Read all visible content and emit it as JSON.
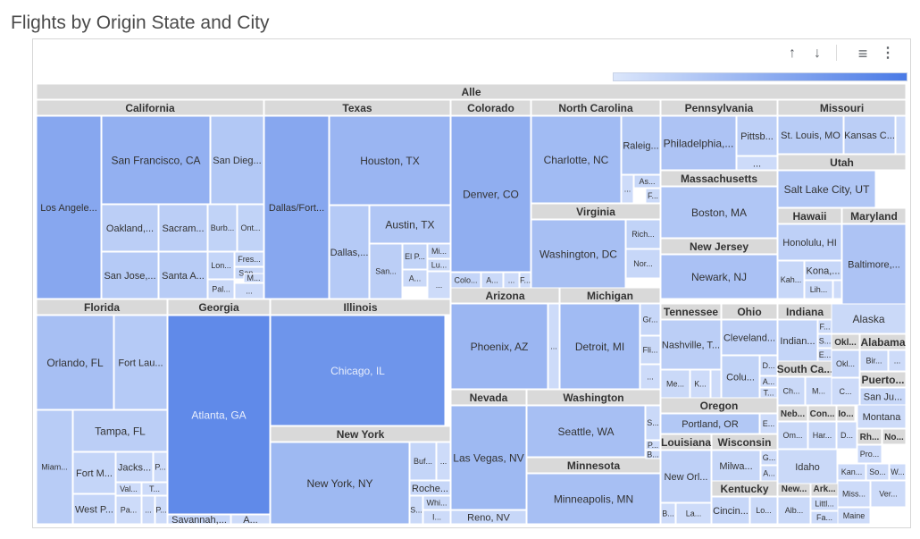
{
  "title": "Flights by Origin State and City",
  "toolbar": {
    "sort_up_icon": "arrow-up-icon",
    "sort_down_icon": "arrow-down-icon",
    "filter_icon": "filter-icon",
    "more_icon": "more-vert-icon"
  },
  "chart_data": {
    "type": "treemap",
    "title": "Flights by Origin State and City",
    "color_scale": {
      "low": "#dbe6fb",
      "high": "#4a7ae6"
    },
    "root": "Alle",
    "groups": [
      {
        "name": "California",
        "cities": [
          {
            "n": "Los Angele...",
            "v": 0.58
          },
          {
            "n": "San Francisco, CA",
            "v": 0.5
          },
          {
            "n": "San Dieg...",
            "v": 0.28
          },
          {
            "n": "Oakland,...",
            "v": 0.22
          },
          {
            "n": "Sacram...",
            "v": 0.22
          },
          {
            "n": "Burb...",
            "v": 0.18
          },
          {
            "n": "Ont...",
            "v": 0.18
          },
          {
            "n": "San Jose,...",
            "v": 0.26
          },
          {
            "n": "Santa A...",
            "v": 0.24
          },
          {
            "n": "Lon...",
            "v": 0.16
          },
          {
            "n": "Fres...",
            "v": 0.14
          },
          {
            "n": "San...",
            "v": 0.14
          },
          {
            "n": "M...",
            "v": 0.12
          },
          {
            "n": "Pal...",
            "v": 0.12
          },
          {
            "n": "...",
            "v": 0.1
          }
        ]
      },
      {
        "name": "Texas",
        "cities": [
          {
            "n": "Dallas/Fort...",
            "v": 0.58
          },
          {
            "n": "Houston, TX",
            "v": 0.45
          },
          {
            "n": "Austin, TX",
            "v": 0.3
          },
          {
            "n": "Dallas,...",
            "v": 0.26
          },
          {
            "n": "San...",
            "v": 0.22
          },
          {
            "n": "El P...",
            "v": 0.18
          },
          {
            "n": "Mi...",
            "v": 0.14
          },
          {
            "n": "Lu...",
            "v": 0.12
          },
          {
            "n": "A...",
            "v": 0.12
          },
          {
            "n": "...",
            "v": 0.1
          }
        ]
      },
      {
        "name": "Colorado",
        "cities": [
          {
            "n": "Denver, CO",
            "v": 0.52
          },
          {
            "n": "Colo...",
            "v": 0.16
          },
          {
            "n": "A...",
            "v": 0.12
          },
          {
            "n": "...",
            "v": 0.1
          },
          {
            "n": "F...",
            "v": 0.1
          }
        ]
      },
      {
        "name": "North Carolina",
        "cities": [
          {
            "n": "Charlotte, NC",
            "v": 0.4
          },
          {
            "n": "Raleig...",
            "v": 0.28
          },
          {
            "n": "As...",
            "v": 0.14
          },
          {
            "n": "F...",
            "v": 0.12
          },
          {
            "n": "...",
            "v": 0.1
          }
        ]
      },
      {
        "name": "Virginia",
        "cities": [
          {
            "n": "Washington, DC",
            "v": 0.36
          },
          {
            "n": "Rich...",
            "v": 0.18
          },
          {
            "n": "Nor...",
            "v": 0.14
          }
        ]
      },
      {
        "name": "Pennsylvania",
        "cities": [
          {
            "n": "Philadelphia,...",
            "v": 0.32
          },
          {
            "n": "Pittsb...",
            "v": 0.2
          },
          {
            "n": "...",
            "v": 0.1
          }
        ]
      },
      {
        "name": "Massachusetts",
        "cities": [
          {
            "n": "Boston, MA",
            "v": 0.3
          }
        ]
      },
      {
        "name": "New Jersey",
        "cities": [
          {
            "n": "Newark, NJ",
            "v": 0.34
          }
        ]
      },
      {
        "name": "Missouri",
        "cities": [
          {
            "n": "St. Louis, MO",
            "v": 0.24
          },
          {
            "n": "Kansas C...",
            "v": 0.22
          },
          {
            "n": "...",
            "v": 0.1
          }
        ]
      },
      {
        "name": "Utah",
        "cities": [
          {
            "n": "Salt Lake City, UT",
            "v": 0.3
          }
        ]
      },
      {
        "name": "Hawaii",
        "cities": [
          {
            "n": "Honolulu, HI",
            "v": 0.2
          },
          {
            "n": "Kah...",
            "v": 0.14
          },
          {
            "n": "Kona,...",
            "v": 0.14
          },
          {
            "n": "Lih...",
            "v": 0.12
          },
          {
            "n": "...",
            "v": 0.1
          }
        ]
      },
      {
        "name": "Maryland",
        "cities": [
          {
            "n": "Baltimore,...",
            "v": 0.32
          }
        ]
      },
      {
        "name": "Florida",
        "cities": [
          {
            "n": "Orlando, FL",
            "v": 0.36
          },
          {
            "n": "Fort Lau...",
            "v": 0.26
          },
          {
            "n": "Tampa, FL",
            "v": 0.22
          },
          {
            "n": "Miam...",
            "v": 0.24
          },
          {
            "n": "Fort M...",
            "v": 0.16
          },
          {
            "n": "Jacks...",
            "v": 0.14
          },
          {
            "n": "P...",
            "v": 0.1
          },
          {
            "n": "Val...",
            "v": 0.1
          },
          {
            "n": "T...",
            "v": 0.1
          },
          {
            "n": "Pa...",
            "v": 0.1
          },
          {
            "n": "West P...",
            "v": 0.16
          },
          {
            "n": "...",
            "v": 0.1
          },
          {
            "n": "P...",
            "v": 0.1
          }
        ]
      },
      {
        "name": "Georgia",
        "cities": [
          {
            "n": "Atlanta, GA",
            "v": 0.85
          },
          {
            "n": "Savannah,...",
            "v": 0.14
          },
          {
            "n": "A...",
            "v": 0.1
          }
        ]
      },
      {
        "name": "Illinois",
        "cities": [
          {
            "n": "Chicago, IL",
            "v": 0.75
          }
        ]
      },
      {
        "name": "New York",
        "cities": [
          {
            "n": "New York, NY",
            "v": 0.42
          },
          {
            "n": "Buf...",
            "v": 0.16
          },
          {
            "n": "...",
            "v": 0.1
          },
          {
            "n": "Roche...",
            "v": 0.14
          },
          {
            "n": "Whi...",
            "v": 0.12
          },
          {
            "n": "S...",
            "v": 0.12
          },
          {
            "n": "I...",
            "v": 0.1
          }
        ]
      },
      {
        "name": "Arizona",
        "cities": [
          {
            "n": "Phoenix, AZ",
            "v": 0.44
          },
          {
            "n": "...",
            "v": 0.1
          }
        ]
      },
      {
        "name": "Michigan",
        "cities": [
          {
            "n": "Detroit, MI",
            "v": 0.4
          },
          {
            "n": "Gr...",
            "v": 0.14
          },
          {
            "n": "Fli...",
            "v": 0.12
          },
          {
            "n": "...",
            "v": 0.1
          }
        ]
      },
      {
        "name": "Nevada",
        "cities": [
          {
            "n": "Las Vegas, NV",
            "v": 0.42
          },
          {
            "n": "Reno, NV",
            "v": 0.14
          }
        ]
      },
      {
        "name": "Washington",
        "cities": [
          {
            "n": "Seattle, WA",
            "v": 0.36
          },
          {
            "n": "S...",
            "v": 0.12
          },
          {
            "n": "P...",
            "v": 0.1
          },
          {
            "n": "B...",
            "v": 0.1
          }
        ]
      },
      {
        "name": "Minnesota",
        "cities": [
          {
            "n": "Minneapolis, MN",
            "v": 0.36
          }
        ]
      },
      {
        "name": "Tennessee",
        "cities": [
          {
            "n": "Nashville, T...",
            "v": 0.22
          },
          {
            "n": "Me...",
            "v": 0.12
          },
          {
            "n": "K...",
            "v": 0.1
          },
          {
            "n": "...",
            "v": 0.1
          }
        ]
      },
      {
        "name": "Ohio",
        "cities": [
          {
            "n": "Cleveland...",
            "v": 0.2
          },
          {
            "n": "D...",
            "v": 0.12
          },
          {
            "n": "Colu...",
            "v": 0.18
          },
          {
            "n": "A...",
            "v": 0.1
          },
          {
            "n": "T...",
            "v": 0.1
          }
        ]
      },
      {
        "name": "Indiana",
        "cities": [
          {
            "n": "Indian...",
            "v": 0.16
          },
          {
            "n": "F...",
            "v": 0.1
          },
          {
            "n": "S...",
            "v": 0.1
          },
          {
            "n": "E...",
            "v": 0.1
          }
        ]
      },
      {
        "name": "Alaska",
        "cities": [
          {
            "n": "Alaska",
            "v": 0.12
          }
        ]
      },
      {
        "name": "Oklahoma",
        "cities": [
          {
            "n": "Okl...",
            "v": 0.14
          }
        ]
      },
      {
        "name": "Alabama",
        "cities": [
          {
            "n": "Bir...",
            "v": 0.12
          },
          {
            "n": "...",
            "v": 0.1
          }
        ]
      },
      {
        "name": "South Carolina",
        "cities": [
          {
            "n": "Ch...",
            "v": 0.12
          },
          {
            "n": "M...",
            "v": 0.1
          },
          {
            "n": "C...",
            "v": 0.1
          }
        ]
      },
      {
        "name": "Puerto Rico",
        "cities": [
          {
            "n": "San Ju...",
            "v": 0.14
          }
        ]
      },
      {
        "name": "Oregon",
        "cities": [
          {
            "n": "Portland, OR",
            "v": 0.28
          },
          {
            "n": "E...",
            "v": 0.1
          }
        ]
      },
      {
        "name": "Louisiana",
        "cities": [
          {
            "n": "New Orl...",
            "v": 0.2
          },
          {
            "n": "B...",
            "v": 0.1
          },
          {
            "n": "La...",
            "v": 0.1
          }
        ]
      },
      {
        "name": "Wisconsin",
        "cities": [
          {
            "n": "Milwa...",
            "v": 0.14
          },
          {
            "n": "G...",
            "v": 0.1
          },
          {
            "n": "A...",
            "v": 0.1
          }
        ]
      },
      {
        "name": "Kentucky",
        "cities": [
          {
            "n": "Cincin...",
            "v": 0.14
          },
          {
            "n": "Lo...",
            "v": 0.12
          }
        ]
      },
      {
        "name": "Nebraska",
        "cities": [
          {
            "n": "Om...",
            "v": 0.12
          }
        ]
      },
      {
        "name": "Connecticut",
        "cities": [
          {
            "n": "Har...",
            "v": 0.12
          }
        ]
      },
      {
        "name": "Iowa",
        "cities": [
          {
            "n": "D...",
            "v": 0.1
          }
        ]
      },
      {
        "name": "Rhode Island",
        "cities": [
          {
            "n": "Pro...",
            "v": 0.1
          }
        ]
      },
      {
        "name": "Montana",
        "cities": [
          {
            "n": "Montana",
            "v": 0.1
          }
        ]
      },
      {
        "name": "Idaho",
        "cities": [
          {
            "n": "Idaho",
            "v": 0.12
          }
        ]
      },
      {
        "name": "New Mexico",
        "cities": [
          {
            "n": "Alb...",
            "v": 0.12
          }
        ]
      },
      {
        "name": "Arkansas",
        "cities": [
          {
            "n": "Littl...",
            "v": 0.1
          },
          {
            "n": "Fa...",
            "v": 0.1
          }
        ]
      },
      {
        "name": "Mississippi",
        "cities": [
          {
            "n": "Miss...",
            "v": 0.1
          }
        ]
      },
      {
        "name": "Maine",
        "cities": [
          {
            "n": "Maine",
            "v": 0.1
          }
        ]
      },
      {
        "name": "Kansas",
        "cities": [
          {
            "n": "Kan...",
            "v": 0.1
          }
        ]
      },
      {
        "name": "South Dakota",
        "cities": [
          {
            "n": "So...",
            "v": 0.1
          }
        ]
      },
      {
        "name": "West Virginia",
        "cities": [
          {
            "n": "W...",
            "v": 0.1
          }
        ]
      },
      {
        "name": "Vermont",
        "cities": [
          {
            "n": "Ver...",
            "v": 0.1
          }
        ]
      }
    ],
    "header_labels": {
      "California": "California",
      "Texas": "Texas",
      "Colorado": "Colorado",
      "North Carolina": "North Carolina",
      "Virginia": "Virginia",
      "Pennsylvania": "Pennsylvania",
      "Massachusetts": "Massachusetts",
      "New Jersey": "New Jersey",
      "Missouri": "Missouri",
      "Utah": "Utah",
      "Hawaii": "Hawaii",
      "Maryland": "Maryland",
      "Florida": "Florida",
      "Georgia": "Georgia",
      "Illinois": "Illinois",
      "New York": "New York",
      "Arizona": "Arizona",
      "Michigan": "Michigan",
      "Nevada": "Nevada",
      "Washington": "Washington",
      "Minnesota": "Minnesota",
      "Tennessee": "Tennessee",
      "Ohio": "Ohio",
      "Indiana": "Indiana",
      "Oklahoma": "Okl...",
      "Alabama": "Alabama",
      "South Carolina": "South Ca...",
      "Puerto Rico": "Puerto...",
      "Oregon": "Oregon",
      "Louisiana": "Louisiana",
      "Wisconsin": "Wisconsin",
      "Kentucky": "Kentucky",
      "Nebraska": "Neb...",
      "Connecticut": "Con...",
      "Iowa": "Io...",
      "Rhode Island": "Rh...",
      "New Hampshire": "No...",
      "New Mexico": "New...",
      "Arkansas": "Ark...",
      "Kansas": "Kan...",
      "Maine": "Maine"
    }
  }
}
